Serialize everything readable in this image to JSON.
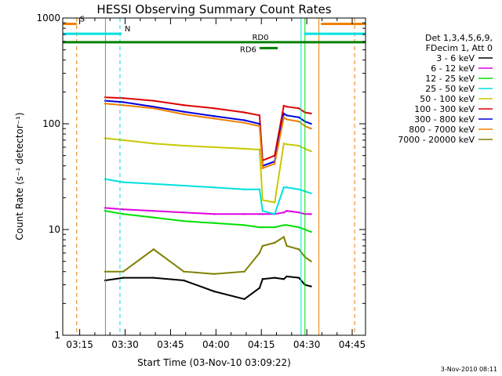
{
  "chart_data": {
    "type": "line",
    "title": "HESSI Observing Summary Count Rates",
    "xlabel": "Start Time (03-Nov-10 03:09:22)",
    "ylabel": "Count Rate (s⁻¹ detector⁻¹)",
    "y_scale": "log",
    "ylim": [
      1,
      1000
    ],
    "xlim_minutes_from_start": [
      0,
      100
    ],
    "x_ticks": [
      {
        "label": "03:15",
        "value": 5.6
      },
      {
        "label": "03:30",
        "value": 20.6
      },
      {
        "label": "03:45",
        "value": 35.6
      },
      {
        "label": "04:00",
        "value": 50.6
      },
      {
        "label": "04:15",
        "value": 65.6
      },
      {
        "label": "04:30",
        "value": 80.6
      },
      {
        "label": "04:45",
        "value": 95.6
      }
    ],
    "y_ticks": [
      {
        "label": "1",
        "value": 1
      },
      {
        "label": "10",
        "value": 10
      },
      {
        "label": "100",
        "value": 100
      },
      {
        "label": "1000",
        "value": 1000
      }
    ],
    "legend_header": [
      "Det 1,3,4,5,6,9,",
      "FDecim 1, Att 0"
    ],
    "legend_position": "right",
    "x_minutes": [
      14,
      20,
      30,
      40,
      50,
      60,
      65,
      66,
      70,
      73,
      74,
      78,
      80,
      82
    ],
    "series": [
      {
        "name": "3 - 6 keV",
        "color": "#000000",
        "values": [
          3.3,
          3.5,
          3.5,
          3.3,
          2.6,
          2.2,
          2.8,
          3.4,
          3.5,
          3.4,
          3.6,
          3.5,
          3.0,
          2.9
        ]
      },
      {
        "name": "6 - 12 keV",
        "color": "#e000e0",
        "values": [
          16,
          15.5,
          15,
          14.5,
          14,
          14,
          14,
          14,
          14,
          14.5,
          15,
          14.5,
          14,
          14
        ]
      },
      {
        "name": "12 - 25 keV",
        "color": "#00e000",
        "values": [
          15,
          14,
          13,
          12,
          11.5,
          11,
          10.5,
          10.5,
          10.5,
          11,
          11,
          10.5,
          10,
          9.5
        ]
      },
      {
        "name": "25 - 50 keV",
        "color": "#00e0e0",
        "values": [
          30,
          28,
          27,
          26,
          25,
          24,
          24,
          15,
          14,
          25,
          25,
          24,
          23,
          22
        ]
      },
      {
        "name": "50 - 100 keV",
        "color": "#c8c800",
        "values": [
          73,
          70,
          65,
          62,
          60,
          58,
          57,
          19,
          18,
          65,
          64,
          62,
          58,
          55
        ]
      },
      {
        "name": "100 - 300 keV",
        "color": "#e00000",
        "values": [
          178,
          175,
          165,
          150,
          140,
          128,
          120,
          45,
          50,
          148,
          145,
          140,
          128,
          125
        ]
      },
      {
        "name": "300 - 800 keV",
        "color": "#0000e0",
        "values": [
          165,
          160,
          145,
          130,
          118,
          108,
          100,
          40,
          44,
          125,
          120,
          115,
          105,
          100
        ]
      },
      {
        "name": "800 - 7000 keV",
        "color": "#f08000",
        "values": [
          155,
          150,
          140,
          123,
          112,
          102,
          95,
          38,
          42,
          115,
          110,
          105,
          95,
          90
        ]
      },
      {
        "name": "7000 - 20000 keV",
        "color": "#808000",
        "values": [
          4,
          4,
          6.5,
          4,
          3.8,
          4,
          6,
          7,
          7.5,
          8.5,
          7,
          6.5,
          5.5,
          5
        ]
      }
    ],
    "vertical_markers": [
      {
        "label": "",
        "color": "#f08000",
        "style": "dashed",
        "x_minutes": [
          4.6,
          96.4
        ]
      },
      {
        "label": "",
        "color": "#f08000",
        "style": "solid",
        "x_minutes": [
          84.6
        ]
      },
      {
        "label": "",
        "color": "#00e0e0",
        "style": "dashed",
        "x_minutes": [
          18.9
        ]
      },
      {
        "label": "",
        "color": "#00e0e0",
        "style": "solid",
        "x_minutes": [
          78.7
        ]
      },
      {
        "label": "",
        "color": "#00e000",
        "style": "solid",
        "x_minutes": [
          14.1,
          80.0
        ]
      }
    ],
    "flag_bars": [
      {
        "label": "S",
        "color": "#f08000",
        "row_value": 880,
        "segments": [
          [
            0,
            4.6
          ],
          [
            85.3,
            100
          ]
        ]
      },
      {
        "label": "N",
        "color": "#00e0e0",
        "row_value": 710,
        "segments": [
          [
            0,
            19.4
          ],
          [
            79.7,
            100
          ]
        ]
      },
      {
        "label": "RD0",
        "color": "#008000",
        "row_value": 590,
        "segments": [
          [
            0,
            100
          ]
        ]
      },
      {
        "label": "RD6",
        "color": "#008000",
        "row_value": 520,
        "segments": [
          [
            65,
            71
          ]
        ]
      }
    ]
  },
  "footer": {
    "timestamp": "3-Nov-2010 08:11"
  }
}
